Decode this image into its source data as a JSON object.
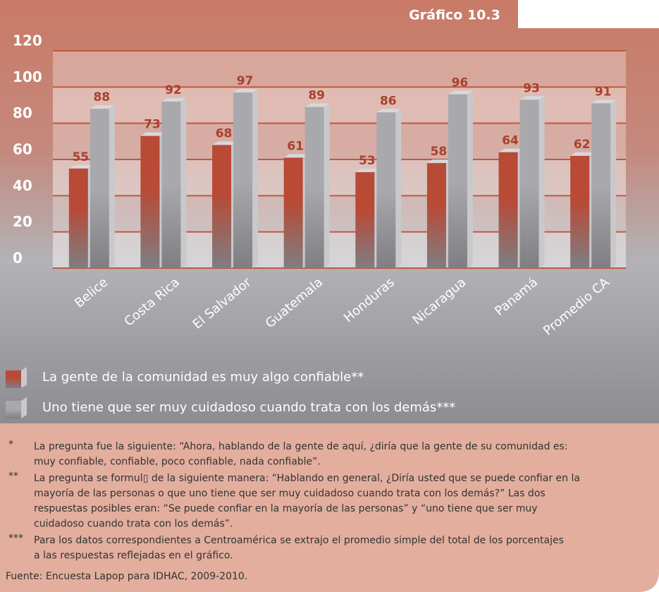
{
  "chart_data": {
    "type": "bar",
    "title": "Gráfico 10.3",
    "categories": [
      "Belice",
      "Costa Rica",
      "El Salvador",
      "Guatemala",
      "Honduras",
      "Nicaragua",
      "Panamá",
      "Promedio CA"
    ],
    "series": [
      {
        "name": "La gente de la comunidad es muy algo confiable**",
        "color": "#b84a36",
        "values": [
          55,
          73,
          68,
          61,
          53,
          58,
          64,
          62
        ]
      },
      {
        "name": "Uno tiene que ser muy cuidadoso cuando trata con los demás***",
        "color": "#a9a9ad",
        "values": [
          88,
          92,
          97,
          89,
          86,
          96,
          93,
          91
        ]
      }
    ],
    "ylim": [
      0,
      120
    ],
    "yticks": [
      0,
      20,
      40,
      60,
      80,
      100,
      120
    ],
    "grid": true
  },
  "notes": [
    {
      "marker": "*",
      "lines": [
        "La pregunta fue la siguiente: “Ahora, hablando de la gente de aquí, ¿diría que la gente de su comunidad es:",
        "muy confiable, confiable, poco confiable, nada confiable”."
      ]
    },
    {
      "marker": "**",
      "lines": [
        "La pregunta se formul▯ de la siguiente manera: “Hablando en general, ¿Diría usted que se puede confiar en la",
        "mayoría de las personas o que uno tiene que ser muy cuidadoso cuando trata con los demás?” Las dos",
        "respuestas posibles eran: “Se puede confiar en la mayoría de las personas” y “uno tiene que ser muy",
        "cuidadoso cuando trata con los demás”."
      ]
    },
    {
      "marker": "***",
      "lines": [
        "Para los datos correspondientes a Centroamérica se extrajo el promedio simple del total de los porcentajes",
        "a las respuestas reflejadas en el gráfico."
      ]
    }
  ],
  "source": "Fuente: Encuesta Lapop para IDHAC, 2009-2010."
}
